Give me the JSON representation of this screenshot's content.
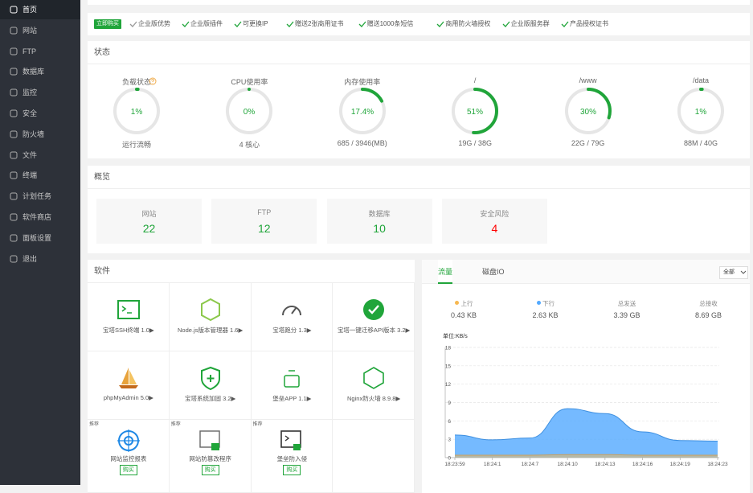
{
  "sidebar": {
    "items": [
      "首页",
      "网站",
      "FTP",
      "数据库",
      "监控",
      "安全",
      "防火墙",
      "文件",
      "终端",
      "计划任务",
      "软件商店",
      "面板设置",
      "退出"
    ]
  },
  "promo": {
    "button": "立即购买",
    "items": [
      "企业版优势",
      "企业版插件",
      "可更换IP",
      "赠送2张商用证书",
      "赠送1000条短信",
      "商用防火墙授权",
      "企业版服务群",
      "产品授权证书"
    ]
  },
  "status": {
    "title": "状态",
    "gauges": [
      {
        "label": "负载状态",
        "value": 1,
        "value_label": "1%",
        "sub": "运行流畅"
      },
      {
        "label": "CPU使用率",
        "value": 0,
        "value_label": "0%",
        "sub": "4 核心"
      },
      {
        "label": "内存使用率",
        "value": 17.4,
        "value_label": "17.4%",
        "sub": "685 / 3946(MB)"
      },
      {
        "label": "/",
        "value": 51,
        "value_label": "51%",
        "sub": "19G / 38G"
      },
      {
        "label": "/www",
        "value": 30,
        "value_label": "30%",
        "sub": "22G / 79G"
      },
      {
        "label": "/data",
        "value": 1,
        "value_label": "1%",
        "sub": "88M / 40G"
      }
    ]
  },
  "overview": {
    "title": "概览",
    "cards": [
      {
        "label": "网站",
        "value": 22
      },
      {
        "label": "FTP",
        "value": 12
      },
      {
        "label": "数据库",
        "value": 10
      },
      {
        "label": "安全风险",
        "value": 4
      }
    ]
  },
  "software": {
    "title": "软件",
    "items": [
      {
        "name": "宝塔SSH终端 1.0▶"
      },
      {
        "name": "Node.js版本管理器 1.6▶"
      },
      {
        "name": "宝塔跑分 1.3▶"
      },
      {
        "name": "宝塔一键迁移API版本 3.2▶"
      },
      {
        "name": "phpMyAdmin 5.0▶"
      },
      {
        "name": "宝塔系统加固 3.2▶"
      },
      {
        "name": "堡垒APP 1.1▶"
      },
      {
        "name": "Nginx防火墙 8.9.8▶"
      },
      {
        "name": "网站监控报表",
        "tag": "推荐",
        "button": "购买"
      },
      {
        "name": "网站防篡改程序",
        "tag": "推荐",
        "button": "购买"
      },
      {
        "name": "堡垒防入侵",
        "tag": "推荐",
        "button": "购买"
      }
    ]
  },
  "traffic": {
    "tabs": [
      "流量",
      "磁盘IO"
    ],
    "select": "全部",
    "stats": [
      {
        "label": "上行",
        "value": "0.43 KB"
      },
      {
        "label": "下行",
        "value": "2.63 KB"
      },
      {
        "label": "总发送",
        "value": "3.39 GB"
      },
      {
        "label": "总接收",
        "value": "8.69 GB"
      }
    ],
    "chart_data": {
      "type": "area",
      "y_label": "单位:KB/s",
      "categories": [
        "18:23:59",
        "18:24:1",
        "18:24:7",
        "18:24:10",
        "18:24:13",
        "18:24:16",
        "18:24:19",
        "18:24:23"
      ],
      "ylim": [
        0,
        18
      ],
      "yticks": [
        0,
        3,
        6,
        9,
        12,
        15,
        18
      ],
      "series": [
        {
          "name": "下行",
          "color": "#52a9ff",
          "values": [
            3.7,
            2.9,
            3.2,
            8.0,
            7.2,
            4.2,
            2.8,
            2.7
          ]
        },
        {
          "name": "上行",
          "color": "#f7b851",
          "values": [
            0.4,
            0.4,
            0.4,
            0.5,
            0.5,
            0.4,
            0.4,
            0.4
          ]
        }
      ]
    }
  }
}
